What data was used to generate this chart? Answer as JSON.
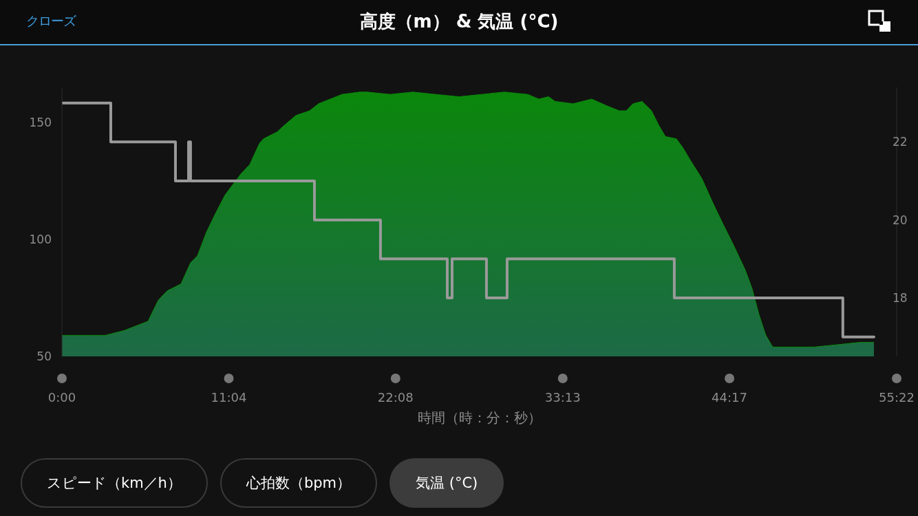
{
  "chart_data": {
    "type": "area",
    "title": "高度（m） & 気温 (°C)",
    "xlabel": "時間（時：分：秒）",
    "xlim": [
      0,
      55.37
    ],
    "xticks": [
      {
        "value": 0,
        "label": "0:00"
      },
      {
        "value": 11.07,
        "label": "11:04"
      },
      {
        "value": 22.13,
        "label": "22:08"
      },
      {
        "value": 33.22,
        "label": "33:13"
      },
      {
        "value": 44.28,
        "label": "44:17"
      },
      {
        "value": 55.37,
        "label": "55:22"
      }
    ],
    "ylim": [
      50,
      165
    ],
    "yticks": [
      50,
      100,
      150
    ],
    "y2lim": [
      16.5,
      23.4
    ],
    "y2ticks": [
      18,
      20,
      22
    ],
    "series": [
      {
        "color": "#0b870b",
        "x": [
          0,
          0.91,
          2.88,
          4.11,
          5.71,
          6.39,
          6.98,
          7.9,
          8.53,
          8.99,
          9.58,
          10.18,
          10.82,
          11.87,
          12.46,
          13.1,
          13.37,
          14.29,
          14.61,
          15.52,
          16.43,
          17.02,
          18.58,
          19.76,
          20.22,
          21.77,
          23.28,
          24.78,
          26.34,
          27.84,
          29.35,
          30.9,
          31.63,
          32.27,
          32.72,
          33.91,
          35.14,
          36.19,
          36.97,
          37.43,
          37.88,
          38.48,
          39.11,
          39.57,
          40.03,
          40.76,
          41.21,
          41.67,
          42.45,
          43.22,
          43.82,
          44.59,
          45.32,
          45.78,
          46.23,
          46.69,
          47.15,
          48.38,
          49.89,
          51.44,
          52.94,
          53.86
        ],
        "values": [
          59,
          59,
          59,
          61,
          65,
          74,
          78,
          81,
          90,
          93,
          103,
          111,
          119,
          128,
          132,
          141,
          143,
          146,
          148,
          153,
          155,
          158,
          162,
          163,
          163,
          162,
          163,
          162,
          161,
          162,
          163,
          162,
          160,
          161,
          159,
          158,
          160,
          157,
          155,
          155,
          158,
          159,
          155,
          149,
          144,
          143,
          139,
          134,
          126,
          115,
          107,
          97,
          87,
          79,
          68,
          59,
          54,
          54,
          54,
          55,
          56,
          56
        ]
      },
      {
        "type": "step",
        "axis": "y2",
        "color": "#9a9a9a",
        "x": [
          0,
          3.24,
          7.53,
          8.4,
          8.53,
          16.75,
          21.13,
          25.56,
          25.88,
          28.16,
          29.53,
          40.62,
          51.8,
          53.86
        ],
        "values": [
          23,
          22,
          21,
          22,
          21,
          20,
          19,
          18,
          19,
          18,
          19,
          18,
          17,
          17
        ]
      }
    ],
    "annotations": [
      "クローズ",
      "スピード（km／h）",
      "心拍数（bpm）",
      "気温 (°C)"
    ]
  }
}
